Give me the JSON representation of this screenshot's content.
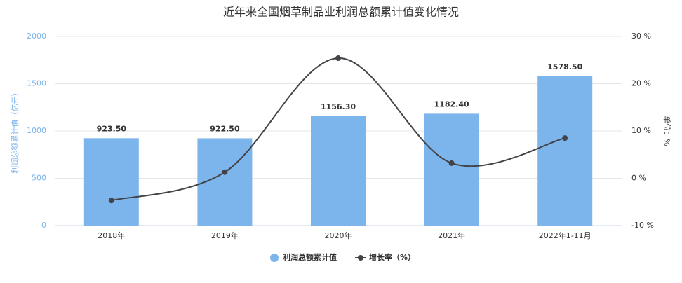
{
  "chart_data": {
    "type": "bar",
    "title": "近年来全国烟草制品业利润总额累计值变化情况",
    "y_label": "利润总额累计值（亿元）",
    "y2_label": "单位：%",
    "categories": [
      "2018年",
      "2019年",
      "2020年",
      "2021年",
      "2022年1-11月"
    ],
    "series": [
      {
        "name": "利润总额累计值",
        "type": "bar",
        "color": "#7cb5ec",
        "values": [
          923.5,
          922.5,
          1156.3,
          1182.4,
          1578.5
        ],
        "value_labels": [
          "923.50",
          "922.50",
          "1156.30",
          "1182.40",
          "1578.50"
        ]
      },
      {
        "name": "增长率（%）",
        "type": "line",
        "axis": "y2",
        "color": "#434348",
        "values": [
          -4.7,
          1.3,
          25.4,
          3.2,
          8.5
        ]
      }
    ],
    "ylim": [
      0,
      2000
    ],
    "yticks": [
      0,
      500,
      1000,
      1500,
      2000
    ],
    "y2lim": [
      -10,
      30
    ],
    "y2ticks": [
      {
        "value": -10,
        "label": "-10 %"
      },
      {
        "value": 0,
        "label": "0 %"
      },
      {
        "value": 10,
        "label": "10 %"
      },
      {
        "value": 20,
        "label": "20 %"
      },
      {
        "value": 30,
        "label": "30 %"
      }
    ],
    "grid": true,
    "legend": "bottom"
  }
}
